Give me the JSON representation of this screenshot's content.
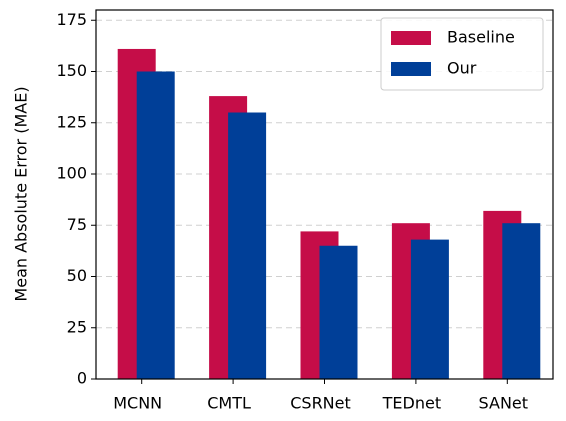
{
  "chart_data": {
    "type": "bar",
    "ylabel": "Mean Absolute Error (MAE)",
    "categories": [
      "MCNN",
      "CMTL",
      "CSRNet",
      "TEDnet",
      "SANet"
    ],
    "series": [
      {
        "name": "Baseline",
        "color": "#c50d48",
        "values": [
          161,
          138,
          72,
          76,
          82
        ]
      },
      {
        "name": "Our",
        "color": "#003f98",
        "values": [
          150,
          130,
          65,
          68,
          76
        ]
      }
    ],
    "ylim": [
      0,
      180
    ],
    "yticks": [
      0,
      25,
      50,
      75,
      100,
      125,
      150,
      175
    ],
    "grid": true,
    "legend": "upper right"
  }
}
